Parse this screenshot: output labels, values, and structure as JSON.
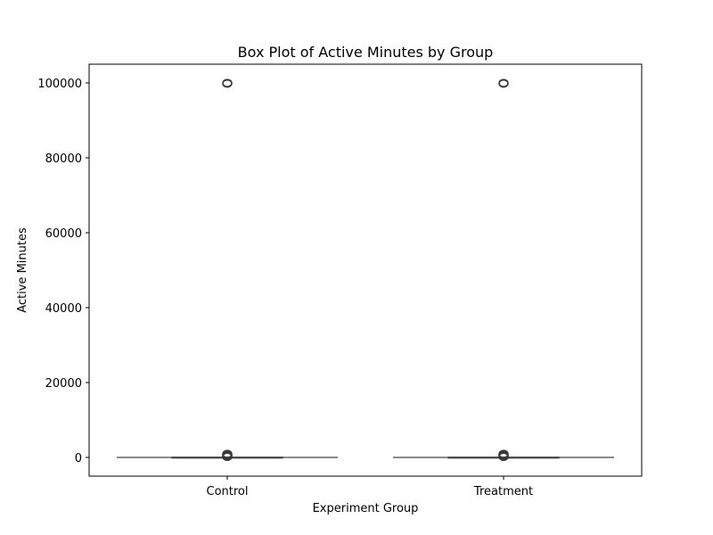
{
  "chart_data": {
    "type": "box",
    "title": "Box Plot of Active Minutes by Group",
    "xlabel": "Experiment Group",
    "ylabel": "Active Minutes",
    "categories": [
      "Control",
      "Treatment"
    ],
    "ylim": [
      -5000,
      105000
    ],
    "yticks": [
      0,
      20000,
      40000,
      60000,
      80000,
      100000
    ],
    "grid": false,
    "legend": "none",
    "colors": {
      "axis": "#000000",
      "box": "#444444",
      "outlier": "#3a3a3a"
    },
    "boxes": [
      {
        "category": "Control",
        "whisker_low": 0,
        "q1": 10,
        "median": 30,
        "q3": 60,
        "whisker_high": 150,
        "outliers": [
          150,
          200,
          280,
          350,
          420,
          500,
          580,
          650,
          720,
          800,
          880,
          950,
          99800,
          99900,
          100000
        ]
      },
      {
        "category": "Treatment",
        "whisker_low": 0,
        "q1": 10,
        "median": 30,
        "q3": 60,
        "whisker_high": 150,
        "outliers": [
          150,
          200,
          280,
          350,
          420,
          500,
          580,
          650,
          720,
          800,
          880,
          950,
          99800,
          99900,
          100000
        ]
      }
    ]
  }
}
